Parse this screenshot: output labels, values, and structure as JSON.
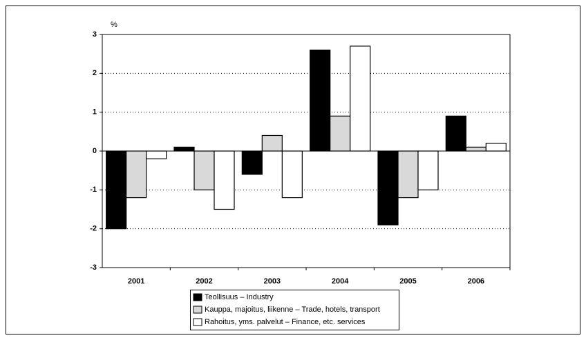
{
  "chart_data": {
    "type": "bar",
    "y_label": "%",
    "categories": [
      "2001",
      "2002",
      "2003",
      "2004",
      "2005",
      "2006"
    ],
    "series": [
      {
        "name": "Teollisuus – Industry",
        "color": "#000000",
        "values": [
          -2.0,
          0.1,
          -0.6,
          2.6,
          -1.9,
          0.9
        ]
      },
      {
        "name": "Kauppa, majoitus, liikenne – Trade, hotels, transport",
        "color": "#d9d9d9",
        "values": [
          -1.2,
          -1.0,
          0.4,
          0.9,
          -1.2,
          0.1
        ]
      },
      {
        "name": "Rahoitus, yms. palvelut – Finance, etc. services",
        "color": "#ffffff",
        "values": [
          -0.2,
          -1.5,
          -1.2,
          2.7,
          -1.0,
          0.2
        ]
      }
    ],
    "ylim": [
      -3,
      3
    ],
    "yticks": [
      -3,
      -2,
      -1,
      0,
      1,
      2,
      3
    ],
    "grid": true
  }
}
